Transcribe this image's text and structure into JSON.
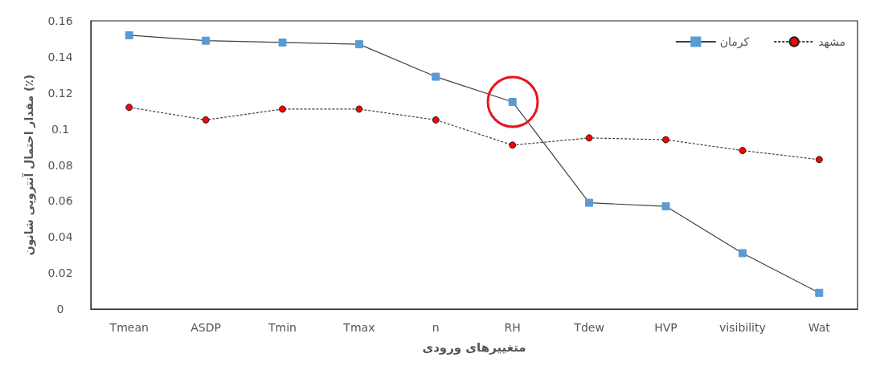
{
  "chart_data": {
    "type": "line",
    "xlabel": "متغییرهای ورودی",
    "ylabel": "مقدار احتمال آنتروپی شانون (٪)",
    "categories": [
      "Tmean",
      "ASDP",
      "Tmin",
      "Tmax",
      "n",
      "RH",
      "Tdew",
      "HVP",
      "visibility",
      "Wat"
    ],
    "series": [
      {
        "name": "کرمان",
        "color": "#5b9bd5",
        "marker": "square",
        "line_style": "solid",
        "values": [
          0.152,
          0.149,
          0.148,
          0.147,
          0.129,
          0.115,
          0.059,
          0.057,
          0.031,
          0.009
        ]
      },
      {
        "name": "مشهد",
        "color": "#ff0000",
        "marker": "circle",
        "line_style": "dashed",
        "values": [
          0.112,
          0.105,
          0.111,
          0.111,
          0.105,
          0.091,
          0.095,
          0.094,
          0.088,
          0.083
        ]
      }
    ],
    "ylim": [
      0,
      0.16
    ],
    "yticks": [
      0,
      0.02,
      0.04,
      0.06,
      0.08,
      0.1,
      0.12,
      0.14,
      0.16
    ],
    "grid": false,
    "legend": "top right"
  }
}
